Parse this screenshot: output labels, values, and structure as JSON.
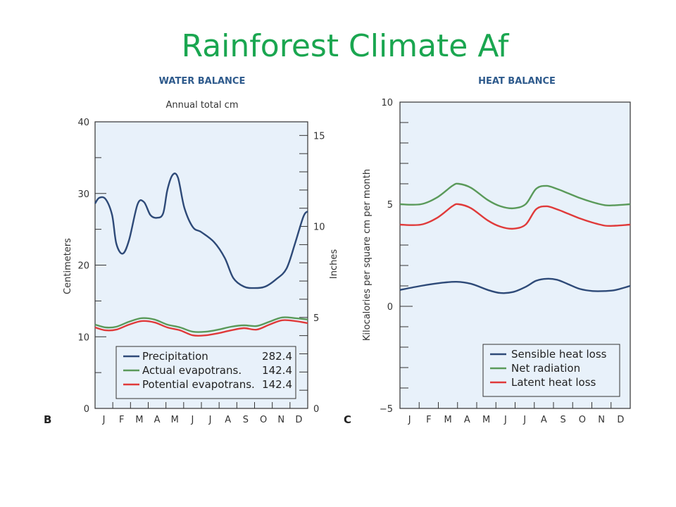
{
  "slide": {
    "title": "Rainforest Climate Af"
  },
  "colors": {
    "background": "#e8f1fa",
    "precipitation": "#2e4a78",
    "evapotrans": "#5a9a5a",
    "potential": "#e03a3a",
    "title": "#1aa650",
    "panel_title": "#2e5a8c"
  },
  "chart_data": [
    {
      "type": "line",
      "panel_label": "B",
      "title": "WATER BALANCE",
      "subtitle": "Annual total cm",
      "ylabel": "Centimeters",
      "y2label": "Inches",
      "ylim": [
        0,
        40
      ],
      "yticks": [
        "0",
        "10",
        "20",
        "30",
        "40"
      ],
      "y2ticks": [
        "0",
        "5",
        "10",
        "15"
      ],
      "categories": [
        "J",
        "F",
        "M",
        "A",
        "M",
        "J",
        "J",
        "A",
        "S",
        "O",
        "N",
        "D"
      ],
      "legend_position": "bottom-right",
      "series": [
        {
          "name": "Precipitation",
          "total": "282.4",
          "color": "#2e4a78",
          "x": [
            0,
            0.2,
            0.5,
            0.8,
            1.0,
            1.3,
            1.6,
            2.0,
            2.3,
            2.6,
            2.9,
            3.2,
            3.4,
            3.65,
            3.9,
            4.2,
            4.6,
            5.0,
            5.6,
            6.1,
            6.5,
            7.0,
            7.5,
            8.0,
            8.5,
            9.0,
            9.4,
            9.8,
            10.0
          ],
          "y": [
            28.6,
            29.4,
            29.2,
            27,
            23,
            21.6,
            23.5,
            28.5,
            28.8,
            27,
            26.6,
            27.2,
            30.5,
            32.6,
            32.2,
            28,
            25.3,
            24.6,
            23.2,
            21,
            18.2,
            17,
            16.8,
            17,
            18,
            19.5,
            23,
            26.8,
            27.5
          ]
        },
        {
          "name": "Actual evapotrans.",
          "total": "142.4",
          "color": "#5a9a5a",
          "x": [
            0,
            0.5,
            1.0,
            1.6,
            2.2,
            2.8,
            3.4,
            4.0,
            4.6,
            5.2,
            5.8,
            6.4,
            7.0,
            7.6,
            8.2,
            8.8,
            9.4,
            10.0
          ],
          "y": [
            11.7,
            11.3,
            11.4,
            12.1,
            12.6,
            12.4,
            11.7,
            11.3,
            10.7,
            10.7,
            11,
            11.4,
            11.6,
            11.5,
            12.1,
            12.7,
            12.6,
            12.4
          ]
        },
        {
          "name": "Potential evapotrans.",
          "total": "142.4",
          "color": "#e03a3a",
          "x": [
            0,
            0.5,
            1.0,
            1.6,
            2.2,
            2.8,
            3.4,
            4.0,
            4.6,
            5.2,
            5.8,
            6.4,
            7.0,
            7.6,
            8.2,
            8.8,
            9.4,
            10.0
          ],
          "y": [
            11.3,
            10.9,
            11,
            11.7,
            12.2,
            12,
            11.3,
            10.9,
            10.2,
            10.2,
            10.5,
            10.9,
            11.2,
            11,
            11.7,
            12.3,
            12.2,
            11.9
          ]
        }
      ]
    },
    {
      "type": "line",
      "panel_label": "C",
      "title": "HEAT BALANCE",
      "ylabel": "Kilocalories per square cm per month",
      "ylim": [
        -5,
        10
      ],
      "yticks": [
        "−5",
        "0",
        "5",
        "10"
      ],
      "categories": [
        "J",
        "F",
        "M",
        "A",
        "M",
        "J",
        "J",
        "A",
        "S",
        "O",
        "N",
        "D"
      ],
      "legend_position": "bottom-right",
      "series": [
        {
          "name": "Sensible heat loss",
          "color": "#2e4a78",
          "x": [
            0,
            1.0,
            2.0,
            2.7,
            3.4,
            4.2,
            4.8,
            5.4,
            6.0,
            6.5,
            7.0,
            7.5,
            8.0,
            8.6,
            9.2,
            9.8,
            10.3,
            11.0
          ],
          "y": [
            0.8,
            1.0,
            1.15,
            1.2,
            1.1,
            0.8,
            0.65,
            0.7,
            0.95,
            1.25,
            1.35,
            1.3,
            1.1,
            0.85,
            0.75,
            0.75,
            0.8,
            1.0
          ]
        },
        {
          "name": "Net radiation",
          "color": "#5a9a5a",
          "x": [
            0,
            1.0,
            1.8,
            2.5,
            2.8,
            3.4,
            4.2,
            4.8,
            5.4,
            6.0,
            6.5,
            7.0,
            7.5,
            8.0,
            8.6,
            9.2,
            9.8,
            10.3,
            11.0
          ],
          "y": [
            5.0,
            5.0,
            5.35,
            5.9,
            6.0,
            5.8,
            5.2,
            4.9,
            4.8,
            5.0,
            5.75,
            5.9,
            5.75,
            5.55,
            5.3,
            5.1,
            4.95,
            4.95,
            5.0
          ]
        },
        {
          "name": "Latent heat loss",
          "color": "#e03a3a",
          "x": [
            0,
            1.0,
            1.8,
            2.5,
            2.8,
            3.4,
            4.2,
            4.8,
            5.4,
            6.0,
            6.5,
            7.0,
            7.5,
            8.0,
            8.6,
            9.2,
            9.8,
            10.3,
            11.0
          ],
          "y": [
            4.0,
            4.0,
            4.35,
            4.9,
            5.0,
            4.8,
            4.2,
            3.9,
            3.8,
            4.0,
            4.75,
            4.9,
            4.75,
            4.55,
            4.3,
            4.1,
            3.95,
            3.95,
            4.0
          ]
        }
      ]
    }
  ]
}
